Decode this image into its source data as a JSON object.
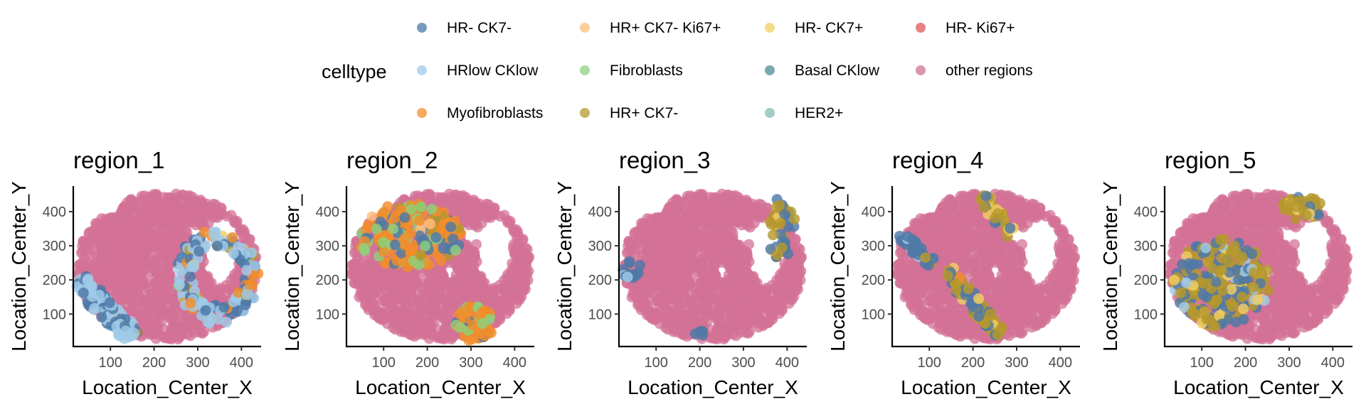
{
  "chart_data": {
    "type": "scatter",
    "legend": {
      "title": "celltype",
      "placement": "top",
      "entries": [
        {
          "label": "HR- CK7-",
          "color": "#4E79A7"
        },
        {
          "label": "HR+ CK7- Ki67+",
          "color": "#FFBE7D"
        },
        {
          "label": "HR- CK7+",
          "color": "#F1CE63"
        },
        {
          "label": "HR- Ki67+",
          "color": "#E15759"
        },
        {
          "label": "HRlow CKlow",
          "color": "#A0CBE8"
        },
        {
          "label": "Fibroblasts",
          "color": "#8CD17D"
        },
        {
          "label": "Basal CKlow",
          "color": "#4E8B93"
        },
        {
          "label": "other regions",
          "color": "#D37295"
        },
        {
          "label": "Myofibroblasts",
          "color": "#F28E2B"
        },
        {
          "label": "HR+ CK7-",
          "color": "#B6992D"
        },
        {
          "label": "HER2+",
          "color": "#86BCB6"
        }
      ]
    },
    "xlabel": "Location_Center_X",
    "ylabel": "Location_Center_Y",
    "xlim": [
      15,
      445
    ],
    "ylim": [
      5,
      475
    ],
    "xticks": [
      "100",
      "200",
      "300",
      "400"
    ],
    "yticks": [
      "100",
      "200",
      "300",
      "400"
    ],
    "background_class": "other regions",
    "panels": [
      {
        "title": "region_1",
        "highlights": [
          {
            "shape": "ring",
            "cx": 345,
            "cy": 210,
            "rx": 95,
            "ry": 140,
            "inner": 0.6,
            "n": 160,
            "weights": {
              "HRlow CKlow": 5,
              "HR- CK7-": 3,
              "Myofibroblasts": 1,
              "HR+ CK7-": 0.6,
              "Fibroblasts": 0.3,
              "HR- CK7+": 0.2
            }
          },
          {
            "shape": "band",
            "x1": 25,
            "y1": 200,
            "x2": 150,
            "y2": 35,
            "w": 50,
            "n": 110,
            "weights": {
              "HR- CK7-": 4,
              "HRlow CKlow": 4,
              "HR+ CK7-": 0.4
            }
          }
        ]
      },
      {
        "title": "region_2",
        "highlights": [
          {
            "shape": "ellipse",
            "cx": 160,
            "cy": 330,
            "rx": 120,
            "ry": 95,
            "n": 190,
            "weights": {
              "Myofibroblasts": 6,
              "Fibroblasts": 2,
              "HR- CK7-": 2.5,
              "HR+ CK7-": 0.6,
              "HR+ CK7- Ki67+": 0.3
            }
          },
          {
            "shape": "ellipse",
            "cx": 310,
            "cy": 75,
            "rx": 45,
            "ry": 55,
            "n": 60,
            "weights": {
              "Myofibroblasts": 5,
              "Fibroblasts": 2,
              "HR- CK7-": 1.5
            }
          }
        ]
      },
      {
        "title": "region_3",
        "highlights": [
          {
            "shape": "ellipse",
            "cx": 385,
            "cy": 350,
            "rx": 35,
            "ry": 90,
            "n": 40,
            "weights": {
              "HR- CK7-": 3,
              "HR+ CK7-": 3,
              "HR- CK7+": 0.5
            }
          },
          {
            "shape": "ellipse",
            "cx": 45,
            "cy": 230,
            "rx": 28,
            "ry": 45,
            "n": 15,
            "weights": {
              "HR- CK7-": 4,
              "HRlow CKlow": 1
            }
          },
          {
            "shape": "ellipse",
            "cx": 200,
            "cy": 45,
            "rx": 12,
            "ry": 12,
            "n": 4,
            "weights": {
              "HR- CK7-": 3,
              "HR+ CK7-": 1
            }
          }
        ]
      },
      {
        "title": "region_4",
        "highlights": [
          {
            "shape": "band",
            "x1": 220,
            "y1": 445,
            "x2": 290,
            "y2": 330,
            "w": 30,
            "n": 35,
            "weights": {
              "HR- CK7+": 3,
              "HR+ CK7-": 3,
              "HR- CK7-": 1
            }
          },
          {
            "shape": "band",
            "x1": 30,
            "y1": 330,
            "x2": 110,
            "y2": 250,
            "w": 30,
            "n": 30,
            "weights": {
              "HR- CK7-": 4,
              "HR+ CK7-": 2,
              "HRlow CKlow": 1
            }
          },
          {
            "shape": "band",
            "x1": 140,
            "y1": 230,
            "x2": 260,
            "y2": 40,
            "w": 35,
            "n": 70,
            "weights": {
              "HR- CK7-": 4,
              "HR+ CK7-": 3,
              "HR- CK7+": 1,
              "Myofibroblasts": 0.5
            }
          }
        ]
      },
      {
        "title": "region_5",
        "highlights": [
          {
            "shape": "ellipse",
            "cx": 145,
            "cy": 190,
            "rx": 110,
            "ry": 130,
            "n": 260,
            "weights": {
              "HR+ CK7-": 5,
              "HR- CK7-": 4,
              "HRlow CKlow": 1,
              "HR- CK7+": 0.8
            }
          },
          {
            "shape": "ellipse",
            "cx": 330,
            "cy": 410,
            "rx": 45,
            "ry": 35,
            "n": 50,
            "weights": {
              "HR+ CK7-": 4,
              "HR- CK7-": 2,
              "HR- CK7+": 1
            }
          }
        ]
      }
    ]
  }
}
